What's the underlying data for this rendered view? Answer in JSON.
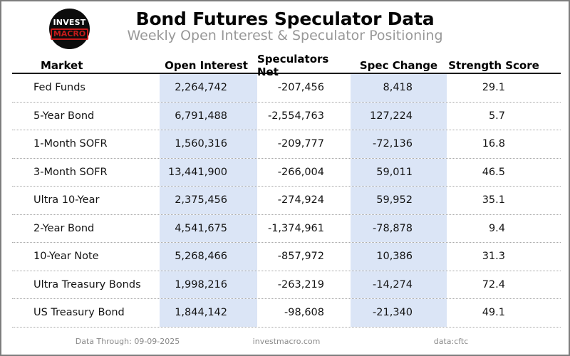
{
  "brand": {
    "logo_top": "INVEST",
    "logo_bottom": "MACRO"
  },
  "header": {
    "title": "Bond Futures Speculator Data",
    "subtitle": "Weekly Open Interest & Speculator Positioning"
  },
  "table": {
    "columns": [
      "Market",
      "Open Interest",
      "Speculators Net",
      "Spec Change",
      "Strength Score"
    ],
    "rows": [
      {
        "market": "Fed Funds",
        "open_interest": "2,264,742",
        "speculators_net": "-207,456",
        "spec_change": "8,418",
        "strength_score": "29.1"
      },
      {
        "market": "5-Year Bond",
        "open_interest": "6,791,488",
        "speculators_net": "-2,554,763",
        "spec_change": "127,224",
        "strength_score": "5.7"
      },
      {
        "market": "1-Month SOFR",
        "open_interest": "1,560,316",
        "speculators_net": "-209,777",
        "spec_change": "-72,136",
        "strength_score": "16.8"
      },
      {
        "market": "3-Month SOFR",
        "open_interest": "13,441,900",
        "speculators_net": "-266,004",
        "spec_change": "59,011",
        "strength_score": "46.5"
      },
      {
        "market": "Ultra 10-Year",
        "open_interest": "2,375,456",
        "speculators_net": "-274,924",
        "spec_change": "59,952",
        "strength_score": "35.1"
      },
      {
        "market": "2-Year Bond",
        "open_interest": "4,541,675",
        "speculators_net": "-1,374,961",
        "spec_change": "-78,878",
        "strength_score": "9.4"
      },
      {
        "market": "10-Year Note",
        "open_interest": "5,268,466",
        "speculators_net": "-857,972",
        "spec_change": "10,386",
        "strength_score": "31.3"
      },
      {
        "market": "Ultra Treasury Bonds",
        "open_interest": "1,998,216",
        "speculators_net": "-263,219",
        "spec_change": "-14,274",
        "strength_score": "72.4"
      },
      {
        "market": "US Treasury Bond",
        "open_interest": "1,844,142",
        "speculators_net": "-98,608",
        "spec_change": "-21,340",
        "strength_score": "49.1"
      }
    ]
  },
  "footer": {
    "data_through": "Data Through: 09-09-2025",
    "site": "investmacro.com",
    "source": "data:cftc"
  },
  "colors": {
    "highlight": "#dbe5f6",
    "frame_gray": "#7d7d7d",
    "accent_red": "#c41a1a",
    "subtitle_gray": "#989898",
    "footer_gray": "#8a8a8a"
  },
  "chart_data": {
    "type": "table",
    "title": "Bond Futures Speculator Data",
    "subtitle": "Weekly Open Interest & Speculator Positioning",
    "columns": [
      "Market",
      "Open Interest",
      "Speculators Net",
      "Spec Change",
      "Strength Score"
    ],
    "rows": [
      [
        "Fed Funds",
        2264742,
        -207456,
        8418,
        29.1
      ],
      [
        "5-Year Bond",
        6791488,
        -2554763,
        127224,
        5.7
      ],
      [
        "1-Month SOFR",
        1560316,
        -209777,
        -72136,
        16.8
      ],
      [
        "3-Month SOFR",
        13441900,
        -266004,
        59011,
        46.5
      ],
      [
        "Ultra 10-Year",
        2375456,
        -274924,
        59952,
        35.1
      ],
      [
        "2-Year Bond",
        4541675,
        -1374961,
        -78878,
        9.4
      ],
      [
        "10-Year Note",
        5268466,
        -857972,
        10386,
        31.3
      ],
      [
        "Ultra Treasury Bonds",
        1998216,
        -263219,
        -14274,
        72.4
      ],
      [
        "US Treasury Bond",
        1844142,
        -98608,
        -21340,
        49.1
      ]
    ],
    "highlighted_columns": [
      "Open Interest",
      "Spec Change"
    ],
    "source": "data:cftc",
    "data_through": "09-09-2025"
  }
}
